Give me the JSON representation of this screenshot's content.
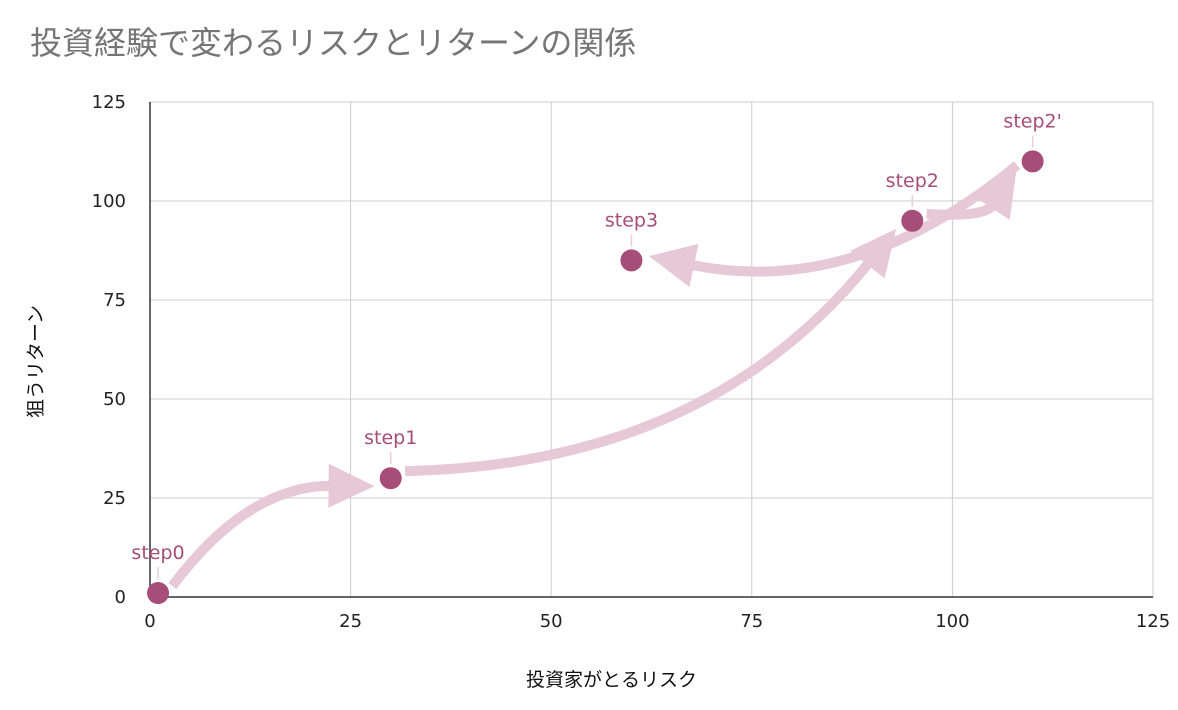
{
  "chart_data": {
    "type": "scatter",
    "title": "投資経験で変わるリスクとリターンの関係",
    "xlabel": "投資家がとるリスク",
    "ylabel": "狙うリターン",
    "xlim": [
      0,
      125
    ],
    "ylim": [
      0,
      125
    ],
    "xticks": [
      0,
      25,
      50,
      75,
      100,
      125
    ],
    "yticks": [
      0,
      25,
      50,
      75,
      100,
      125
    ],
    "grid": true,
    "marker_color": "#a64d79",
    "arrow_color": "#e6c8d6",
    "points": [
      {
        "label": "step0",
        "x": 1,
        "y": 1
      },
      {
        "label": "step1",
        "x": 30,
        "y": 30
      },
      {
        "label": "step2",
        "x": 95,
        "y": 95
      },
      {
        "label": "step2'",
        "x": 110,
        "y": 110
      },
      {
        "label": "step3",
        "x": 60,
        "y": 85
      }
    ],
    "arrows": [
      {
        "from": "step0",
        "to": "step1"
      },
      {
        "from": "step1",
        "to": "step2"
      },
      {
        "from": "step2",
        "to": "step2'"
      },
      {
        "from": "step2'",
        "to": "step3"
      }
    ]
  }
}
